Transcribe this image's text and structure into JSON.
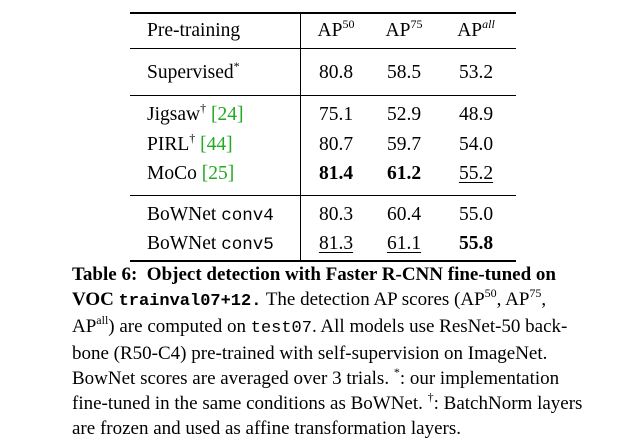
{
  "table": {
    "header": {
      "pretraining": "Pre-training",
      "ap": "AP",
      "sup50": "50",
      "sup75": "75",
      "supall": "all"
    },
    "rows": [
      {
        "name": "Supervised",
        "mark": "*",
        "ref": "",
        "v": [
          "80.8",
          "58.5",
          "53.2"
        ]
      },
      {
        "name": "Jigsaw",
        "mark": "†",
        "ref": "[24]",
        "v": [
          "75.1",
          "52.9",
          "48.9"
        ]
      },
      {
        "name": "PIRL",
        "mark": "†",
        "ref": "[44]",
        "v": [
          "80.7",
          "59.7",
          "54.0"
        ]
      },
      {
        "name": "MoCo",
        "mark": "",
        "ref": "[25]",
        "v": [
          "81.4",
          "61.2",
          "55.2"
        ]
      },
      {
        "name": "BoWNet",
        "layer": "conv4",
        "v": [
          "80.3",
          "60.4",
          "55.0"
        ]
      },
      {
        "name": "BoWNet",
        "layer": "conv5",
        "v": [
          "81.3",
          "61.1",
          "55.8"
        ]
      }
    ]
  },
  "caption": {
    "label": "Table 6:",
    "title_a": "Object detection with Faster R-CNN fine-tuned on",
    "title_b": "VOC",
    "title_code": "trainval07+12.",
    "l2_rest": " The detection AP scores (AP",
    "l2_s1": "50",
    "l2_mid": ", AP",
    "l2_s2": "75",
    "l2_end": ",",
    "l3_ap": "AP",
    "l3_s": "all",
    "l3_a": ") are computed on ",
    "l3_code": "test07",
    "l3_b": ". All models use ResNet-50 back-",
    "l4": "bone (R50-C4) pre-trained with self-supervision on ImageNet.",
    "l5_a": "BowNet scores are averaged over 3 trials. ",
    "l5_s": "*",
    "l5_b": ": our implementation",
    "l6_a": "fine-tuned in the same conditions as BoWNet. ",
    "l6_s": "†",
    "l6_b": ": BatchNorm layers",
    "l7": "are frozen and used as affine transformation layers."
  }
}
